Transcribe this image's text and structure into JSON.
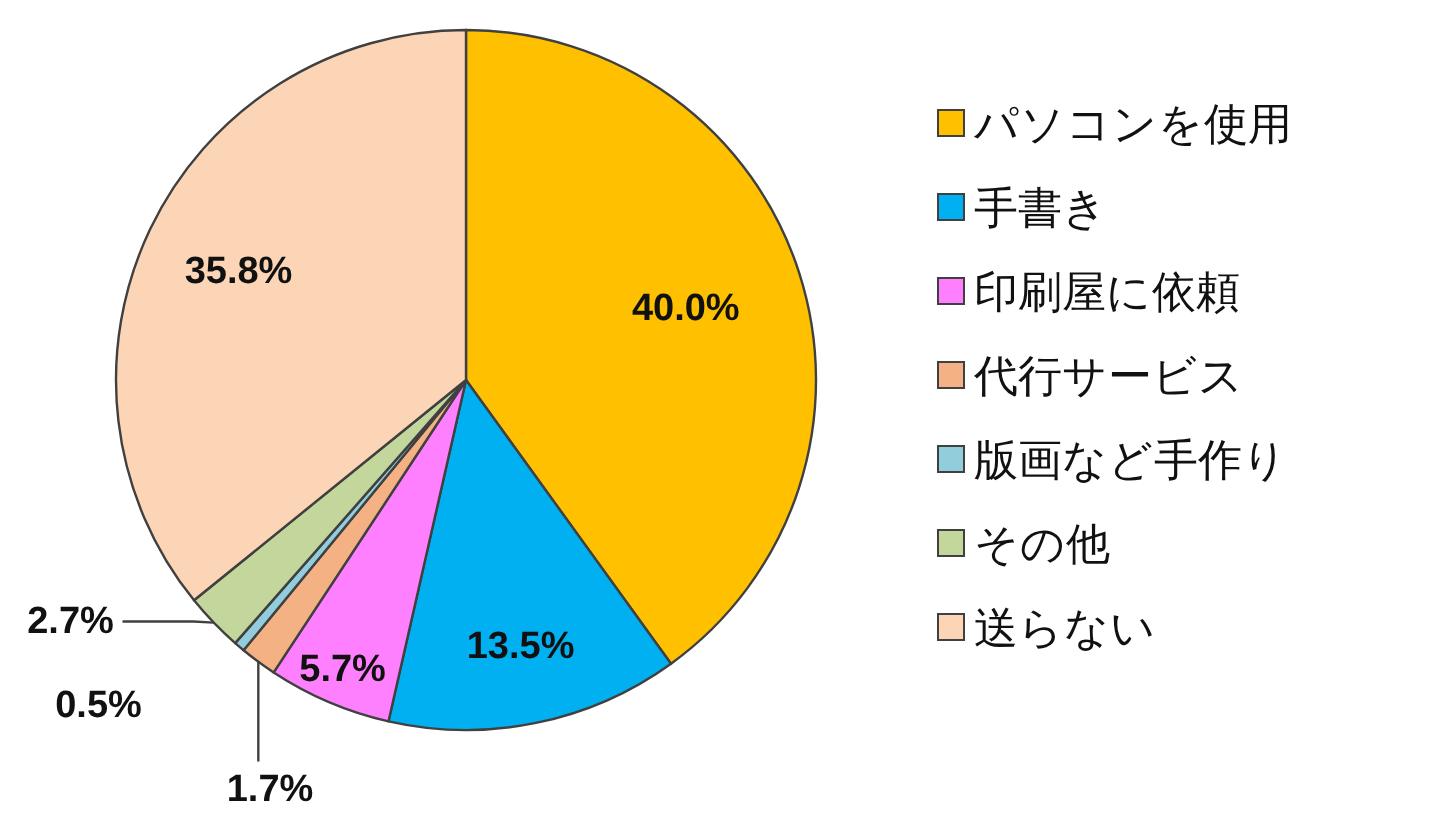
{
  "chart_data": {
    "type": "pie",
    "categories": [
      "パソコンを使用",
      "手書き",
      "印刷屋に依頼",
      "代行サービス",
      "版画など手作り",
      "その他",
      "送らない"
    ],
    "values": [
      40.0,
      13.5,
      5.7,
      1.7,
      0.5,
      2.7,
      35.8
    ],
    "colors": [
      "#ffc000",
      "#00b0f0",
      "#ff80ff",
      "#f4b183",
      "#92cddc",
      "#c3d69b",
      "#fbd5b5"
    ],
    "value_labels": [
      "40.0%",
      "13.5%",
      "5.7%",
      "1.7%",
      "0.5%",
      "2.7%",
      "35.8%"
    ],
    "legend": "right"
  }
}
